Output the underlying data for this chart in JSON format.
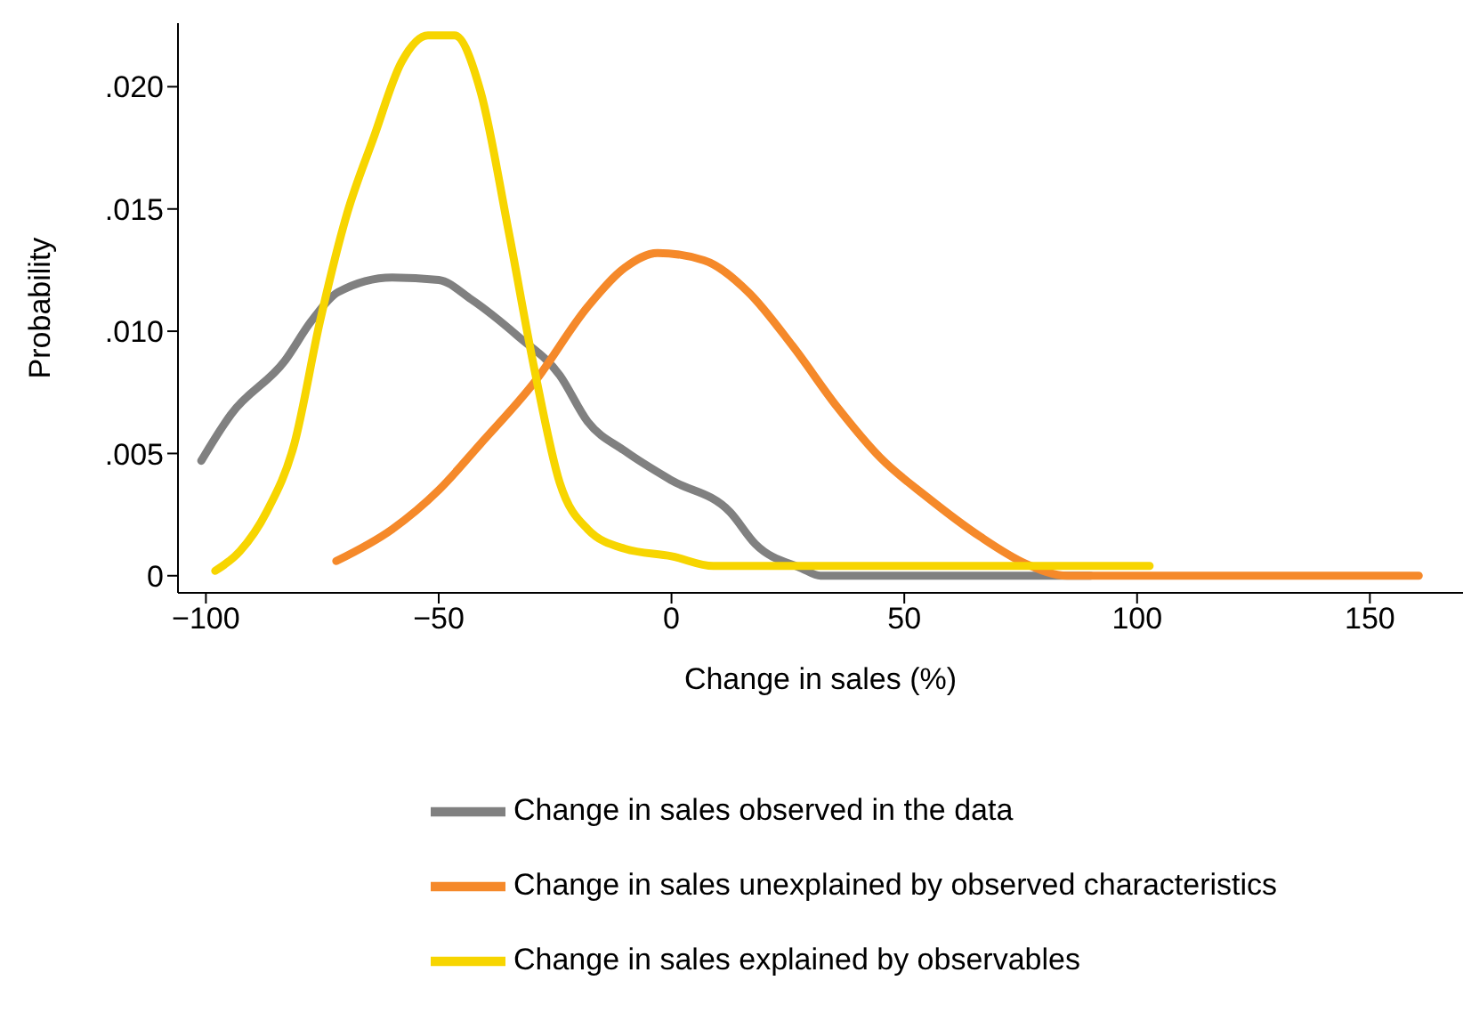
{
  "chart_data": {
    "type": "line",
    "xlabel": "Change in sales (%)",
    "ylabel": "Probability",
    "xlim": [
      -106,
      170
    ],
    "ylim": [
      -0.0007,
      0.0226
    ],
    "xticks": [
      {
        "value": -100,
        "label": "−100"
      },
      {
        "value": -50,
        "label": "−50"
      },
      0,
      50,
      100,
      150
    ],
    "yticks": [
      0,
      {
        "value": 0.005,
        "label": ".005"
      },
      {
        "value": 0.01,
        "label": ".010"
      },
      {
        "value": 0.015,
        "label": ".015"
      },
      {
        "value": 0.02,
        "label": ".020"
      }
    ],
    "grid": false,
    "legend": "bottom",
    "marker": "none",
    "line_style": "solid",
    "series": [
      {
        "name": "Change in sales observed in the data",
        "color": "#808080",
        "x": [
          -101,
          -94.6,
          -83,
          -77.4,
          -71.6,
          -60,
          -50,
          -43,
          -33,
          -24,
          -18,
          -10,
          0,
          12.6,
          18,
          28,
          32,
          90
        ],
        "values": [
          0.0047,
          0.0066,
          0.0088,
          0.0104,
          0.0116,
          0.0122,
          0.0121,
          0.0113,
          0.0098,
          0.0082,
          0.0063,
          0.0051,
          0.0039,
          0.0026,
          0.0013,
          0.0003,
          0,
          0
        ]
      },
      {
        "name": "Change in sales unexplained by observed characteristics",
        "color": "#f5892a",
        "x": [
          -72,
          -60,
          -50,
          -41,
          -29.5,
          -18,
          -10,
          -3,
          7,
          16.5,
          26,
          35.6,
          45,
          55,
          66.3,
          76,
          85,
          160.5
        ],
        "values": [
          0.0006,
          0.0019,
          0.0035,
          0.0054,
          0.0079,
          0.011,
          0.0126,
          0.0132,
          0.0129,
          0.0116,
          0.0094,
          0.0069,
          0.0048,
          0.0032,
          0.0016,
          0.0005,
          0,
          0
        ]
      },
      {
        "name": "Change in sales explained by observables",
        "color": "#f7d500",
        "x": [
          -98,
          -92.7,
          -87,
          -81,
          -75.5,
          -69.7,
          -64,
          -58,
          -52.3,
          -46.6,
          -41,
          -35,
          -29.5,
          -24,
          -18,
          -10,
          0,
          9,
          102.7
        ],
        "values": [
          0.0002,
          0.001,
          0.0026,
          0.0054,
          0.0104,
          0.0148,
          0.0179,
          0.021,
          0.0221,
          0.0221,
          0.0198,
          0.0141,
          0.0085,
          0.0038,
          0.0019,
          0.0011,
          0.0008,
          0.0004,
          0.0004
        ]
      }
    ]
  }
}
